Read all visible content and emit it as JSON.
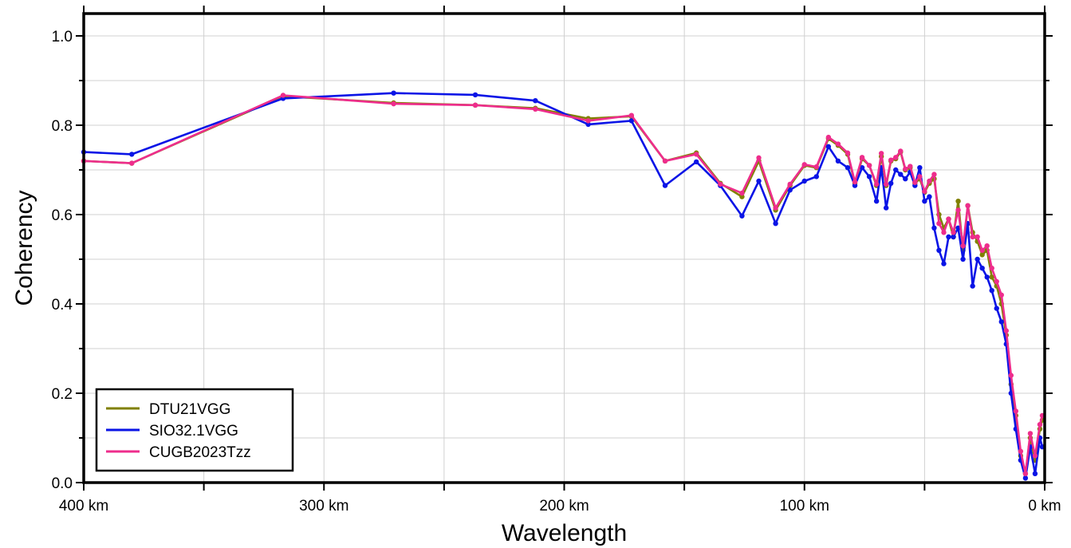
{
  "chart_data": {
    "type": "line",
    "xlabel": "Wavelength",
    "ylabel": "Coherency",
    "xlim": [
      400,
      0
    ],
    "ylim": [
      0,
      1.05
    ],
    "x_ticks": [
      400,
      300,
      200,
      100,
      0
    ],
    "x_tick_labels": [
      "400 km",
      "300 km",
      "200 km",
      "100 km",
      "0 km"
    ],
    "y_ticks": [
      0,
      0.2,
      0.4,
      0.6,
      0.8,
      1.0
    ],
    "y_tick_labels": [
      "0.0",
      "0.2",
      "0.4",
      "0.6",
      "0.8",
      "1.0"
    ],
    "grid": true,
    "legend_position": "bottom-left",
    "series": [
      {
        "name": "DTU21VGG",
        "color": "#808000",
        "x": [
          400,
          380,
          317,
          271,
          237,
          212,
          190,
          172,
          158,
          145,
          135,
          126,
          119,
          112,
          106,
          100,
          95,
          90,
          86,
          82,
          79,
          76,
          73,
          70,
          68,
          66,
          64,
          62,
          60,
          58,
          56,
          54,
          52,
          50,
          48,
          46,
          44,
          42,
          40,
          38,
          36,
          34,
          32,
          30,
          28,
          26,
          24,
          22,
          20,
          18,
          16,
          14,
          12,
          10,
          8,
          6,
          4,
          2,
          1
        ],
        "y": [
          0.72,
          0.715,
          0.865,
          0.85,
          0.845,
          0.838,
          0.815,
          0.82,
          0.72,
          0.738,
          0.67,
          0.64,
          0.72,
          0.61,
          0.665,
          0.71,
          0.705,
          0.77,
          0.755,
          0.735,
          0.67,
          0.725,
          0.71,
          0.665,
          0.73,
          0.665,
          0.72,
          0.725,
          0.74,
          0.7,
          0.705,
          0.67,
          0.68,
          0.65,
          0.67,
          0.68,
          0.6,
          0.57,
          0.59,
          0.55,
          0.63,
          0.52,
          0.62,
          0.56,
          0.54,
          0.51,
          0.52,
          0.46,
          0.44,
          0.4,
          0.33,
          0.22,
          0.15,
          0.06,
          0.02,
          0.1,
          0.05,
          0.12,
          0.14
        ]
      },
      {
        "name": "SIO32.1VGG",
        "color": "#0a14e6",
        "x": [
          400,
          380,
          317,
          271,
          237,
          212,
          190,
          172,
          158,
          145,
          135,
          126,
          119,
          112,
          106,
          100,
          95,
          90,
          86,
          82,
          79,
          76,
          73,
          70,
          68,
          66,
          64,
          62,
          60,
          58,
          56,
          54,
          52,
          50,
          48,
          46,
          44,
          42,
          40,
          38,
          36,
          34,
          32,
          30,
          28,
          26,
          24,
          22,
          20,
          18,
          16,
          14,
          12,
          10,
          8,
          6,
          4,
          2,
          1
        ],
        "y": [
          0.74,
          0.735,
          0.86,
          0.872,
          0.868,
          0.855,
          0.802,
          0.81,
          0.665,
          0.718,
          0.665,
          0.597,
          0.675,
          0.58,
          0.655,
          0.675,
          0.685,
          0.752,
          0.72,
          0.705,
          0.665,
          0.705,
          0.685,
          0.63,
          0.705,
          0.615,
          0.67,
          0.7,
          0.69,
          0.68,
          0.695,
          0.665,
          0.705,
          0.63,
          0.64,
          0.57,
          0.52,
          0.49,
          0.55,
          0.55,
          0.57,
          0.5,
          0.58,
          0.44,
          0.5,
          0.48,
          0.46,
          0.43,
          0.39,
          0.36,
          0.31,
          0.2,
          0.12,
          0.05,
          0.01,
          0.08,
          0.02,
          0.1,
          0.08
        ]
      },
      {
        "name": "CUGB2023Tzz",
        "color": "#ee2d8c",
        "x": [
          400,
          380,
          317,
          271,
          237,
          212,
          190,
          172,
          158,
          145,
          135,
          126,
          119,
          112,
          106,
          100,
          95,
          90,
          86,
          82,
          79,
          76,
          73,
          70,
          68,
          66,
          64,
          62,
          60,
          58,
          56,
          54,
          52,
          50,
          48,
          46,
          44,
          42,
          40,
          38,
          36,
          34,
          32,
          30,
          28,
          26,
          24,
          22,
          20,
          18,
          16,
          14,
          12,
          10,
          8,
          6,
          4,
          2,
          1
        ],
        "y": [
          0.72,
          0.715,
          0.867,
          0.848,
          0.845,
          0.836,
          0.81,
          0.822,
          0.72,
          0.735,
          0.668,
          0.648,
          0.727,
          0.615,
          0.668,
          0.712,
          0.707,
          0.773,
          0.758,
          0.738,
          0.673,
          0.728,
          0.71,
          0.668,
          0.737,
          0.668,
          0.722,
          0.728,
          0.742,
          0.702,
          0.708,
          0.672,
          0.685,
          0.652,
          0.675,
          0.69,
          0.58,
          0.56,
          0.59,
          0.56,
          0.61,
          0.53,
          0.62,
          0.55,
          0.55,
          0.52,
          0.53,
          0.48,
          0.45,
          0.42,
          0.34,
          0.24,
          0.16,
          0.07,
          0.02,
          0.11,
          0.06,
          0.13,
          0.15
        ]
      }
    ]
  }
}
